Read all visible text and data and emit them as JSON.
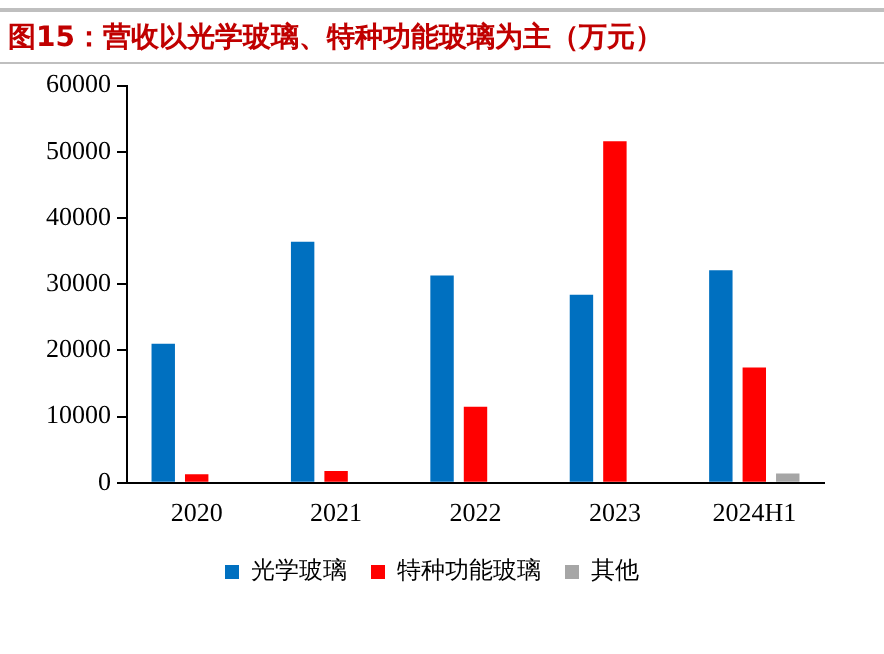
{
  "chart_data": {
    "type": "bar",
    "title": "图15：营收以光学玻璃、特种功能玻璃为主（万元）",
    "categories": [
      "2020",
      "2021",
      "2022",
      "2023",
      "2024H1"
    ],
    "series": [
      {
        "name": "光学玻璃",
        "color": "#0070c0",
        "values": [
          21000,
          36400,
          31300,
          28400,
          32100
        ]
      },
      {
        "name": "特种功能玻璃",
        "color": "#ff0000",
        "values": [
          1300,
          1800,
          11500,
          51600,
          17400
        ]
      },
      {
        "name": "其他",
        "color": "#a6a6a6",
        "values": [
          0,
          0,
          0,
          0,
          1400
        ]
      }
    ],
    "ylim": [
      0,
      60000
    ],
    "yticks": [
      0,
      10000,
      20000,
      30000,
      40000,
      50000,
      60000
    ],
    "grid": false,
    "legend": "bottom"
  }
}
